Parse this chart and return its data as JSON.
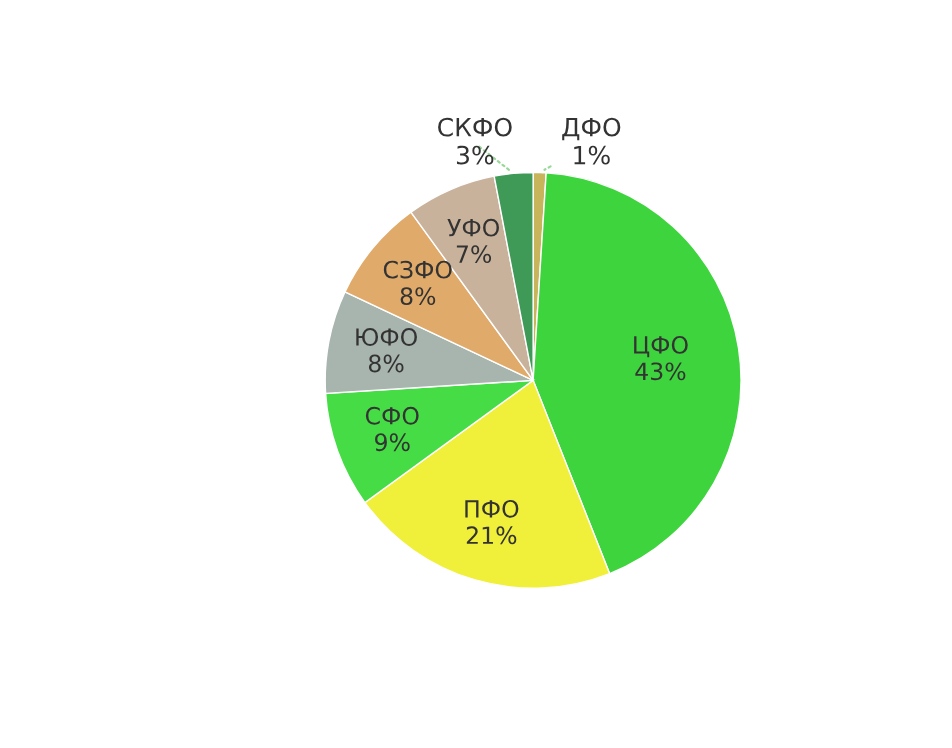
{
  "chart_data": {
    "type": "pie",
    "categories": [
      "ДФО",
      "ЦФО",
      "ПФО",
      "СФО",
      "ЮФО",
      "СЗФО",
      "УФО",
      "СКФО"
    ],
    "values": [
      1,
      43,
      21,
      9,
      8,
      8,
      7,
      3
    ],
    "value_labels": [
      "1%",
      "43%",
      "21%",
      "9%",
      "8%",
      "8%",
      "7%",
      "3%"
    ],
    "colors": [
      "#c8b45a",
      "#3ed43e",
      "#f0ef3a",
      "#46dc46",
      "#a8b4ae",
      "#e0aa6a",
      "#c9b29c",
      "#3e9a56"
    ],
    "legend": false
  }
}
